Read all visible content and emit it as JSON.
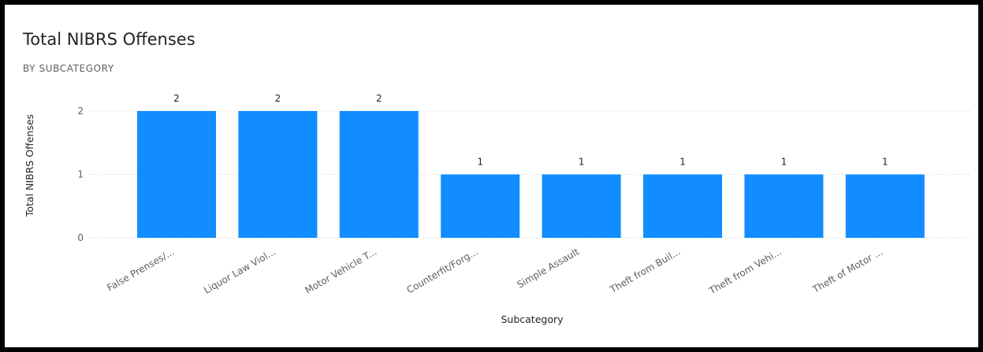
{
  "chart_data": {
    "type": "bar",
    "title": "Total NIBRS Offenses",
    "subtitle": "BY SUBCATEGORY",
    "xlabel": "Subcategory",
    "ylabel": "Total NIBRS Offenses",
    "categories": [
      "False Prenses/...",
      "Liquor Law Viol...",
      "Motor Vehicle T...",
      "Counterfit/Forg...",
      "Simple Assault",
      "Theft from Buil...",
      "Theft from Vehi...",
      "Theft of Motor ..."
    ],
    "values": [
      2,
      2,
      2,
      1,
      1,
      1,
      1,
      1
    ],
    "ylim": [
      0,
      2
    ],
    "yticks": [
      0,
      1,
      2
    ],
    "grid": true,
    "bar_color": "#118dff"
  }
}
